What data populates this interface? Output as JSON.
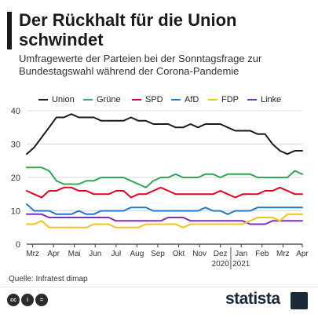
{
  "header": {
    "title": "Der Rückhalt für die Union schwindet",
    "subtitle": "Umfragewerte der Parteien bei der Sonntagsfrage zur Bundestagswahl während der Corona-Pandemie"
  },
  "footer": {
    "source": "Quelle: Infratest dimap",
    "brand": "statista",
    "icons": [
      "cc-icon",
      "by-icon",
      "nd-icon"
    ]
  },
  "chart_data": {
    "type": "line",
    "title": "Der Rückhalt für die Union schwindet",
    "xlabel": "",
    "ylabel": "",
    "ylim": [
      0,
      40
    ],
    "yticks": [
      0,
      10,
      20,
      30,
      40
    ],
    "grid": true,
    "legend_position": "top",
    "xticks": [
      {
        "label": "Mrz",
        "x": 0.8
      },
      {
        "label": "Apr",
        "x": 3.6
      },
      {
        "label": "Mai",
        "x": 6.4
      },
      {
        "label": "Jun",
        "x": 9.2
      },
      {
        "label": "Jul",
        "x": 12.0
      },
      {
        "label": "Aug",
        "x": 14.8
      },
      {
        "label": "Sep",
        "x": 17.6
      },
      {
        "label": "Okt",
        "x": 20.4
      },
      {
        "label": "Nov",
        "x": 23.2
      },
      {
        "label": "Dez",
        "x": 26.0,
        "sub": "2020"
      },
      {
        "label": "Jan",
        "x": 28.8,
        "sub": "2021"
      },
      {
        "label": "Feb",
        "x": 31.6
      },
      {
        "label": "Mrz",
        "x": 34.4
      },
      {
        "label": "Apr",
        "x": 37.0
      }
    ],
    "year_divider_x": 27.4,
    "x_count": 38,
    "series": [
      {
        "name": "Union",
        "color": "#1a1a1a",
        "values": [
          27,
          29,
          32,
          35,
          38,
          38,
          39,
          38,
          38,
          38,
          37,
          37,
          37,
          37,
          38,
          37,
          37,
          36,
          36,
          36,
          35,
          35,
          36,
          35,
          36,
          36,
          36,
          35,
          34,
          34,
          34,
          33,
          33,
          30,
          28,
          27,
          28,
          28
        ]
      },
      {
        "name": "Grüne",
        "color": "#2fa84f",
        "values": [
          23,
          23,
          23,
          22,
          19,
          18,
          18,
          18,
          19,
          19,
          20,
          20,
          20,
          20,
          19,
          18,
          17,
          19,
          20,
          20,
          21,
          20,
          20,
          20,
          21,
          21,
          20,
          21,
          21,
          21,
          21,
          20,
          20,
          20,
          20,
          20,
          22,
          21
        ]
      },
      {
        "name": "SPD",
        "color": "#e3001b",
        "values": [
          16,
          15,
          14,
          16,
          16,
          17,
          17,
          16,
          16,
          15,
          15,
          15,
          16,
          16,
          14,
          15,
          15,
          16,
          17,
          16,
          15,
          15,
          15,
          15,
          15,
          15,
          16,
          15,
          14,
          15,
          15,
          15,
          16,
          16,
          17,
          16,
          15,
          15
        ]
      },
      {
        "name": "AfD",
        "color": "#1f78d1",
        "values": [
          12,
          10,
          10,
          10,
          9,
          9,
          9,
          10,
          9,
          9,
          10,
          10,
          10,
          10,
          11,
          11,
          11,
          10,
          10,
          10,
          10,
          10,
          10,
          10,
          11,
          10,
          10,
          9,
          10,
          10,
          10,
          11,
          11,
          11,
          11,
          11,
          11,
          11
        ]
      },
      {
        "name": "FDP",
        "color": "#f0c419",
        "values": [
          6,
          6,
          7,
          5,
          5,
          5,
          5,
          5,
          5,
          6,
          6,
          6,
          5,
          5,
          5,
          5,
          6,
          6,
          6,
          6,
          6,
          5,
          6,
          6,
          6,
          6,
          6,
          6,
          6,
          6,
          7,
          8,
          8,
          8,
          7,
          9,
          9,
          9
        ]
      },
      {
        "name": "Linke",
        "color": "#7b2fbe",
        "values": [
          9,
          9,
          9,
          8,
          8,
          8,
          8,
          8,
          8,
          8,
          8,
          8,
          7,
          7,
          7,
          7,
          7,
          7,
          7,
          8,
          8,
          8,
          7,
          7,
          7,
          7,
          7,
          7,
          7,
          7,
          6,
          6,
          6,
          7,
          7,
          7,
          7,
          7
        ]
      }
    ]
  }
}
